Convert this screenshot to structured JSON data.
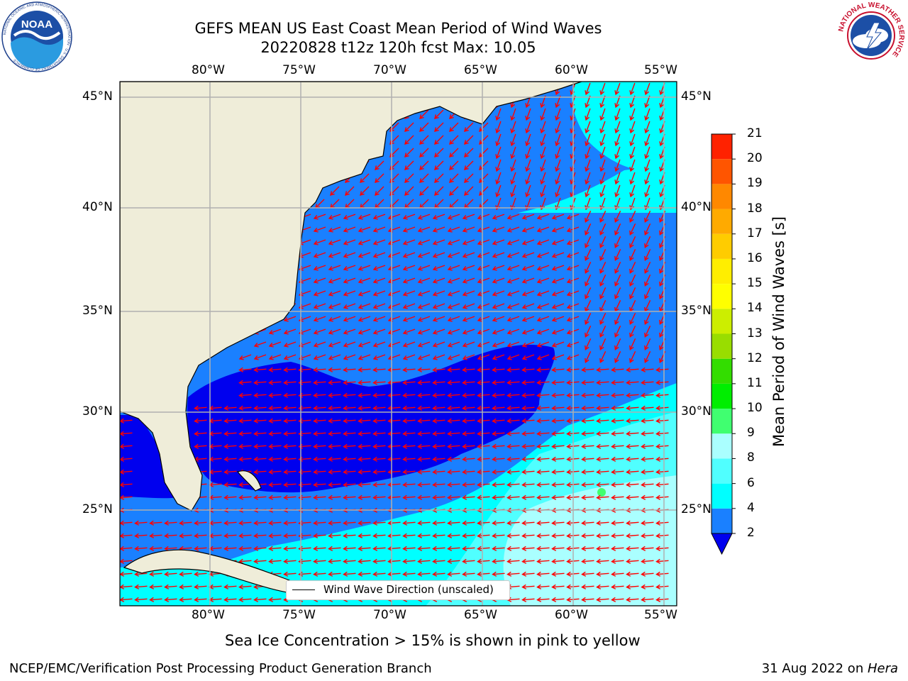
{
  "header": {
    "title_line1": "GEFS MEAN US East Coast Mean Period of Wind Waves",
    "title_line2": "20220828 t12z 120h fcst   Max: 10.05"
  },
  "logos": {
    "left": {
      "name": "noaa-logo",
      "text": "NOAA",
      "ring_text": "NATIONAL OCEANIC AND ATMOSPHERIC ADMINISTRATION · U.S. DEPARTMENT OF COMMERCE"
    },
    "right": {
      "name": "nws-logo",
      "ring_text": "NATIONAL WEATHER SERVICE"
    }
  },
  "map": {
    "lon_labels": [
      "80°W",
      "75°W",
      "70°W",
      "65°W",
      "60°W",
      "55°W"
    ],
    "lat_labels": [
      "45°N",
      "40°N",
      "35°N",
      "30°N",
      "25°N"
    ],
    "legend": "Wind Wave Direction (unscaled)",
    "colors": {
      "land": "#efedd9",
      "level_below_2": "#0000ee",
      "level_2_4": "#1a80ff",
      "level_4_6": "#00ffff",
      "level_6_8": "#50ffff",
      "level_8_9": "#aaffff",
      "level_9_10": "#40ff70",
      "arrow": "#ff0000",
      "grid": "#b0b0b0"
    },
    "max_value": 10.05
  },
  "colorbar": {
    "label": "Mean Period of Wind Waves [s]",
    "ticks": [
      "2",
      "4",
      "6",
      "8",
      "9",
      "10",
      "11",
      "12",
      "13",
      "14",
      "15",
      "16",
      "17",
      "18",
      "19",
      "20",
      "21"
    ],
    "colors": [
      "#1a80ff",
      "#00ffff",
      "#50ffff",
      "#aaffff",
      "#40ff70",
      "#00ee00",
      "#33dd00",
      "#99dd00",
      "#ccee00",
      "#ffff00",
      "#ffee00",
      "#ffcc00",
      "#ffaa00",
      "#ff8800",
      "#ff5500",
      "#ff2200"
    ],
    "underflow_color": "#0000ee"
  },
  "footer": {
    "note": "Sea Ice Concentration > 15% is shown in pink to yellow",
    "credit": "NCEP/EMC/Verification Post Processing Product Generation Branch",
    "date": "31 Aug 2022 on ",
    "host": "Hera"
  }
}
